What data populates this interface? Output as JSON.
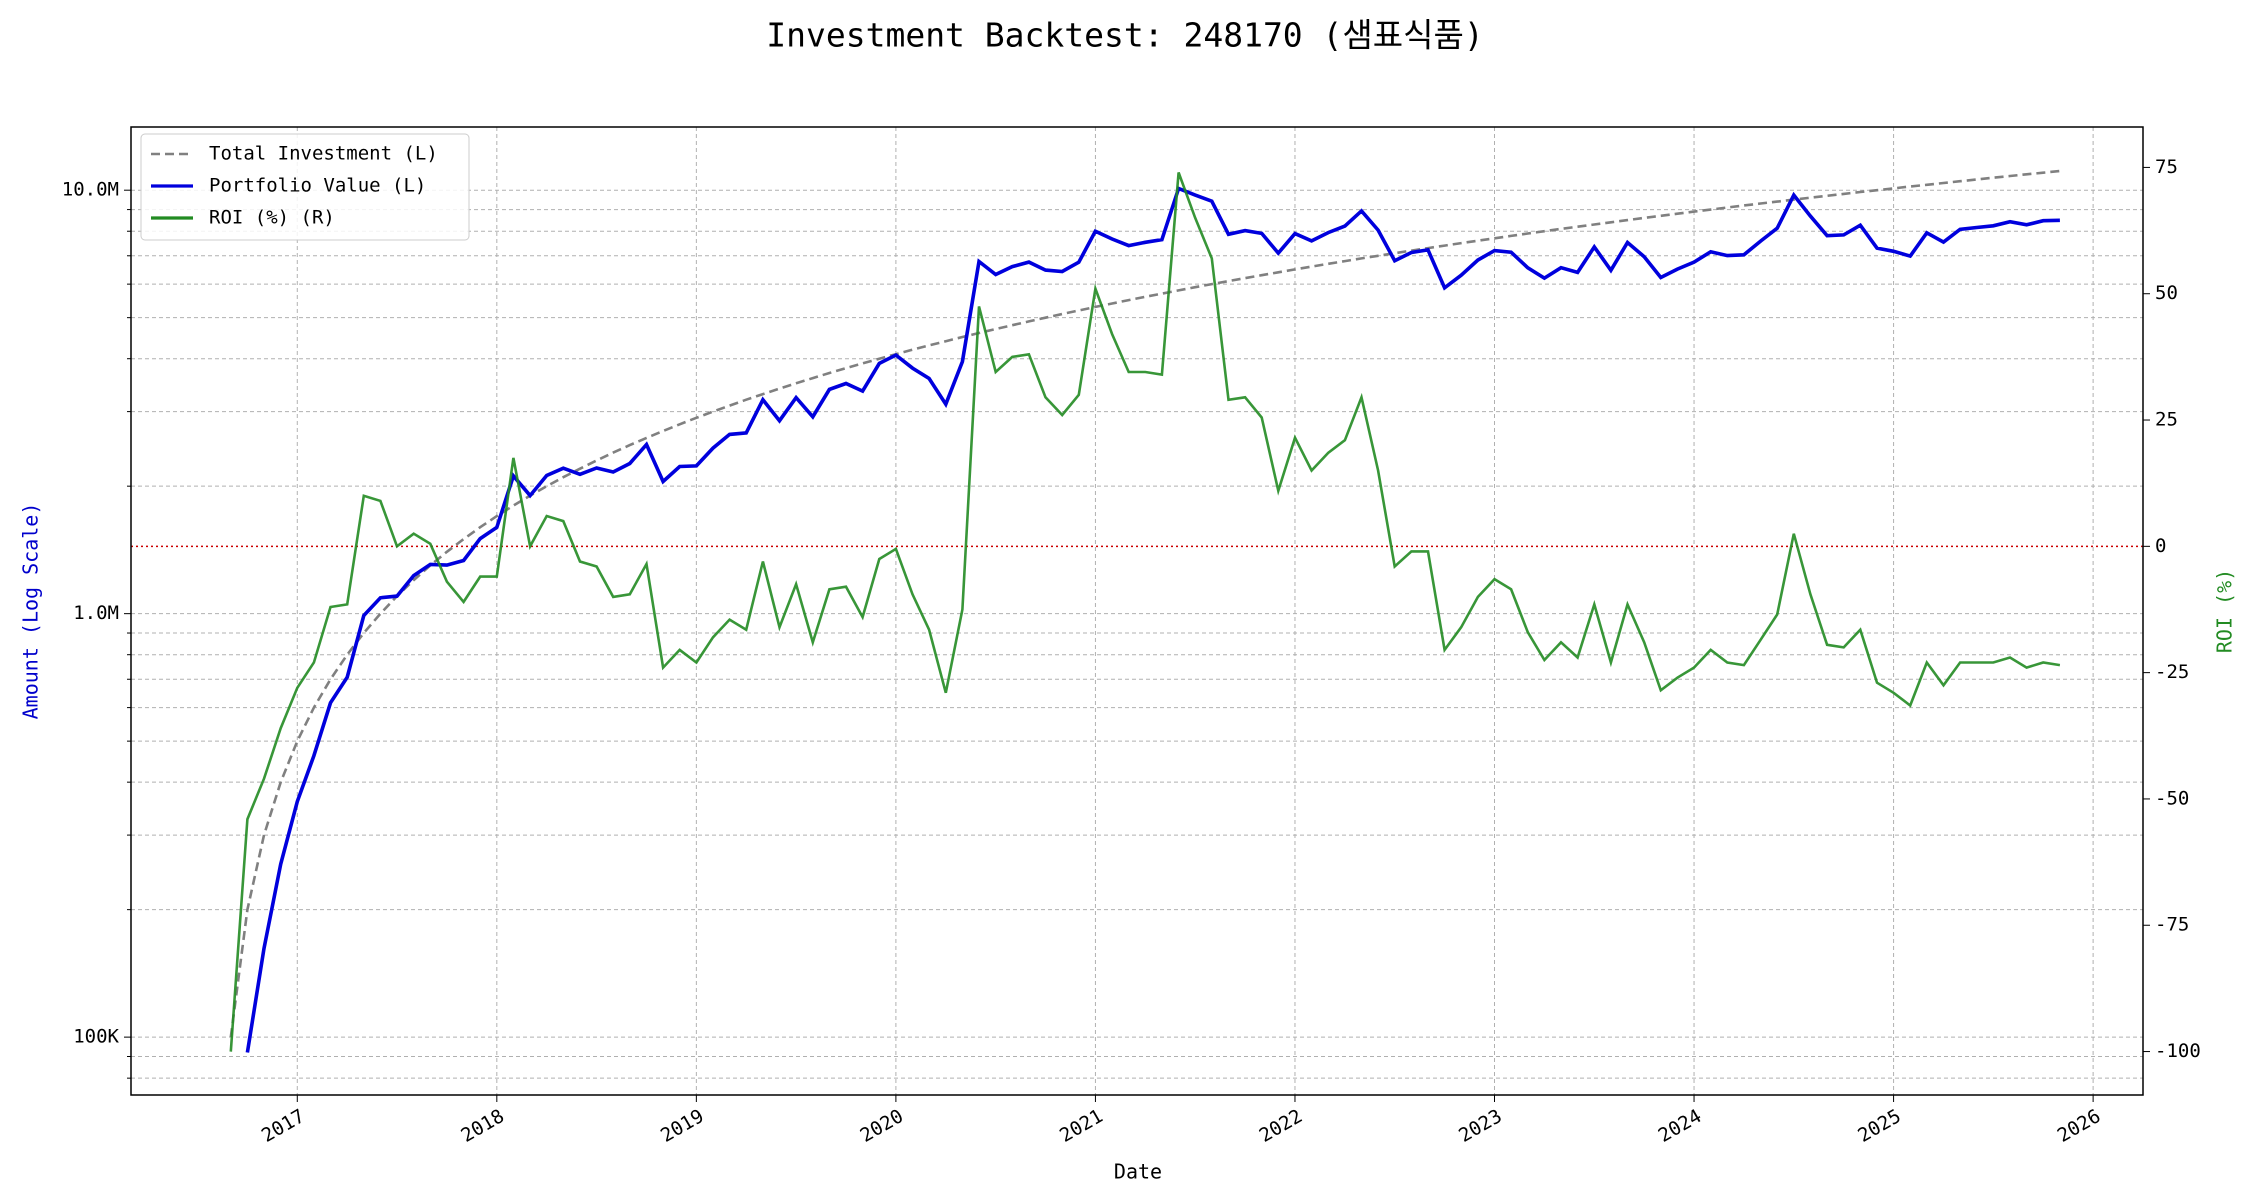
{
  "chart_data": {
    "type": "line",
    "title": "Investment Backtest: 248170 (샘표식품)",
    "xlabel": "Date",
    "ylabel": "Amount (Log Scale)",
    "y2label": "ROI (%)",
    "ylog": true,
    "grid": true,
    "legend": "upper left",
    "ylabel_color": "#0000cc",
    "y2label_color": "#228b22",
    "x": [
      "2016-09",
      "2016-10",
      "2016-11",
      "2016-12",
      "2017-01",
      "2017-02",
      "2017-03",
      "2017-04",
      "2017-05",
      "2017-06",
      "2017-07",
      "2017-08",
      "2017-09",
      "2017-10",
      "2017-11",
      "2017-12",
      "2018-01",
      "2018-02",
      "2018-03",
      "2018-04",
      "2018-05",
      "2018-06",
      "2018-07",
      "2018-08",
      "2018-09",
      "2018-10",
      "2018-11",
      "2018-12",
      "2019-01",
      "2019-02",
      "2019-03",
      "2019-04",
      "2019-05",
      "2019-06",
      "2019-07",
      "2019-08",
      "2019-09",
      "2019-10",
      "2019-11",
      "2019-12",
      "2020-01",
      "2020-02",
      "2020-03",
      "2020-04",
      "2020-05",
      "2020-06",
      "2020-07",
      "2020-08",
      "2020-09",
      "2020-10",
      "2020-11",
      "2020-12",
      "2021-01",
      "2021-02",
      "2021-03",
      "2021-04",
      "2021-05",
      "2021-06",
      "2021-07",
      "2021-08",
      "2021-09",
      "2021-10",
      "2021-11",
      "2021-12",
      "2022-01",
      "2022-02",
      "2022-03",
      "2022-04",
      "2022-05",
      "2022-06",
      "2022-07",
      "2022-08",
      "2022-09",
      "2022-10",
      "2022-11",
      "2022-12",
      "2023-01",
      "2023-02",
      "2023-03",
      "2023-04",
      "2023-05",
      "2023-06",
      "2023-07",
      "2023-08",
      "2023-09",
      "2023-10",
      "2023-11",
      "2023-12",
      "2024-01",
      "2024-02",
      "2024-03",
      "2024-04",
      "2024-05",
      "2024-06",
      "2024-07",
      "2024-08",
      "2024-09",
      "2024-10",
      "2024-11",
      "2024-12",
      "2025-01",
      "2025-02",
      "2025-03",
      "2025-04",
      "2025-05",
      "2025-06",
      "2025-07",
      "2025-08",
      "2025-09",
      "2025-10",
      "2025-11"
    ],
    "series": [
      {
        "name": "Total Investment (L)",
        "color": "#808080",
        "dash": true,
        "axis": "y",
        "values": [
          100000,
          200000,
          300000,
          400000,
          500000,
          600000,
          700000,
          800000,
          900000,
          1000000,
          1100000,
          1200000,
          1300000,
          1400000,
          1500000,
          1600000,
          1700000,
          1800000,
          1900000,
          2000000,
          2100000,
          2200000,
          2300000,
          2400000,
          2500000,
          2600000,
          2700000,
          2800000,
          2900000,
          3000000,
          3100000,
          3200000,
          3300000,
          3400000,
          3500000,
          3600000,
          3700000,
          3800000,
          3900000,
          4000000,
          4100000,
          4200000,
          4300000,
          4400000,
          4500000,
          4600000,
          4700000,
          4800000,
          4900000,
          5000000,
          5100000,
          5200000,
          5300000,
          5400000,
          5500000,
          5600000,
          5700000,
          5800000,
          5900000,
          6000000,
          6100000,
          6200000,
          6300000,
          6400000,
          6500000,
          6600000,
          6700000,
          6800000,
          6900000,
          7000000,
          7100000,
          7200000,
          7300000,
          7400000,
          7500000,
          7600000,
          7700000,
          7800000,
          7900000,
          8000000,
          8100000,
          8200000,
          8300000,
          8400000,
          8500000,
          8600000,
          8700000,
          8800000,
          8900000,
          9000000,
          9100000,
          9200000,
          9300000,
          9400000,
          9500000,
          9600000,
          9700000,
          9800000,
          9900000,
          10000000,
          10100000,
          10200000,
          10300000,
          10400000,
          10500000,
          10600000,
          10700000,
          10800000,
          10900000,
          11000000,
          11100000
        ]
      },
      {
        "name": "Portfolio Value (L)",
        "color": "#0000dd",
        "dash": false,
        "axis": "y",
        "values": [
          null,
          92000,
          162000,
          256000,
          360000,
          462000,
          616000,
          708000,
          990000,
          1090000,
          1100000,
          1230000,
          1307000,
          1302000,
          1335000,
          1504000,
          1598000,
          2115000,
          1900000,
          2120000,
          2205000,
          2134000,
          2208000,
          2160000,
          2263000,
          2509000,
          2052000,
          2226000,
          2233000,
          2460000,
          2651000,
          2672000,
          3201000,
          2856000,
          3238000,
          2916000,
          3386000,
          3496000,
          3354000,
          3900000,
          4080000,
          3801000,
          3591000,
          3124000,
          3938000,
          6785000,
          6322000,
          6600000,
          6762000,
          6475000,
          6426000,
          6760000,
          8003000,
          7668000,
          7398000,
          7532000,
          7638000,
          10092000,
          9735000,
          9420000,
          7869000,
          8029000,
          7907000,
          7104000,
          7898000,
          7590000,
          7940000,
          8228000,
          8936000,
          8050000,
          6816000,
          7128000,
          7227000,
          5883000,
          6300000,
          6840000,
          7200000,
          7137000,
          6557000,
          6200000,
          6561000,
          6396000,
          7346000,
          6468000,
          7523000,
          6966000,
          6221000,
          6512000,
          6764000,
          7155000,
          7007000,
          7038000,
          7580000,
          8131000,
          9738000,
          8688000,
          7809000,
          7840000,
          8267000,
          7300000,
          7171000,
          6987000,
          7931000,
          7540000,
          8085000,
          8162000,
          8239000,
          8424000,
          8284000,
          8470000,
          8492000
        ]
      },
      {
        "name": "ROI (%) (R)",
        "color": "#228b22",
        "dash": false,
        "axis": "y2",
        "values": [
          -100,
          -54,
          -46,
          -36,
          -28,
          -23,
          -12,
          -11.5,
          10,
          9,
          0,
          2.5,
          0.5,
          -7,
          -11,
          -6,
          -6,
          17.5,
          0,
          6,
          5,
          -3,
          -4,
          -10,
          -9.5,
          -3.5,
          -24,
          -20.5,
          -23,
          -18,
          -14.5,
          -16.5,
          -3,
          -16,
          -7.5,
          -19,
          -8.5,
          -8,
          -14,
          -2.5,
          -0.5,
          -9.5,
          -16.5,
          -29,
          -12.5,
          47.5,
          34.5,
          37.5,
          38,
          29.5,
          26,
          30,
          51,
          42,
          34.5,
          34.5,
          34,
          74,
          65,
          57,
          29,
          29.5,
          25.5,
          11,
          21.5,
          15,
          18.5,
          21,
          29.5,
          15,
          -4,
          -1,
          -1,
          -20.5,
          -16,
          -10,
          -6.5,
          -8.5,
          -17,
          -22.5,
          -19,
          -22,
          -11.5,
          -23,
          -11.5,
          -19,
          -28.5,
          -26,
          -24,
          -20.5,
          -23,
          -23.5,
          -18.5,
          -13.5,
          2.5,
          -9.5,
          -19.5,
          -20,
          -16.5,
          -27,
          -29,
          -31.5,
          -23,
          -27.5,
          -23,
          -23,
          -23,
          -22,
          -24,
          -23,
          -23.5
        ]
      }
    ],
    "xlim": [
      "2016-03",
      "2026-04"
    ],
    "xticks": [
      "2017",
      "2018",
      "2019",
      "2020",
      "2021",
      "2022",
      "2023",
      "2024",
      "2025",
      "2026"
    ],
    "ylim": [
      73000,
      14100000
    ],
    "yticks": [
      {
        "value": 100000,
        "label": "100K"
      },
      {
        "value": 1000000,
        "label": "1.0M"
      },
      {
        "value": 10000000,
        "label": "10.0M"
      }
    ],
    "y_minor_ticks": [
      80000,
      90000,
      200000,
      300000,
      400000,
      500000,
      600000,
      700000,
      800000,
      900000,
      2000000,
      3000000,
      4000000,
      5000000,
      6000000,
      7000000,
      8000000,
      9000000
    ],
    "y2lim": [
      -108.6,
      83
    ],
    "y2ticks": [
      -100,
      -75,
      -50,
      -25,
      0,
      25,
      50,
      75
    ],
    "y2_hline": {
      "value": 0,
      "color": "#cc0000"
    }
  }
}
